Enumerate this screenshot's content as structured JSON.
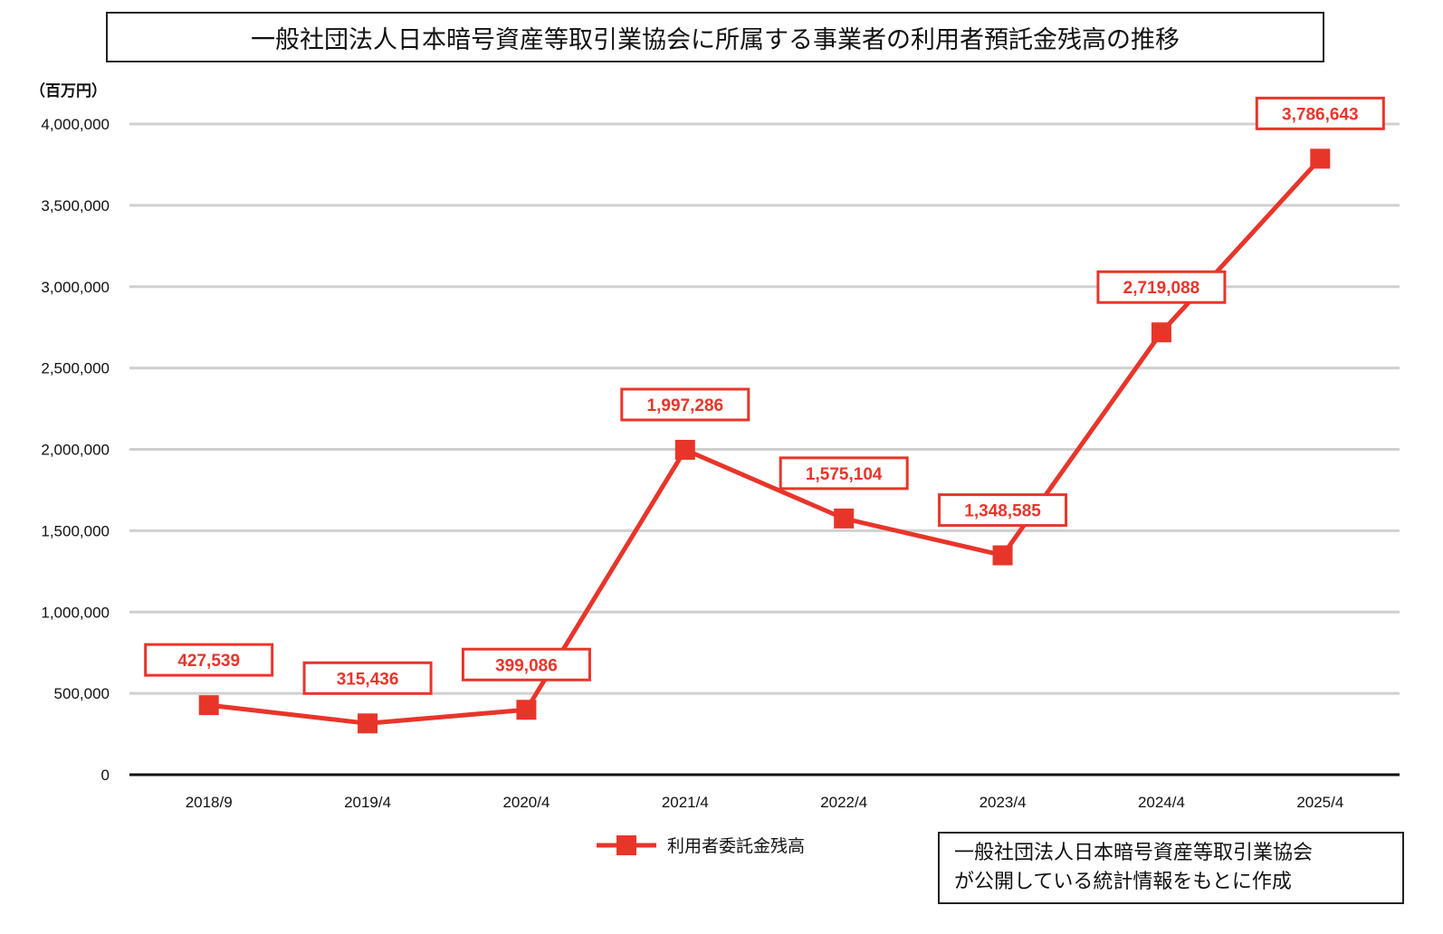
{
  "title": "一般社団法人日本暗号資産等取引業協会に所属する事業者の利用者預託金残高の推移",
  "unit_label": "（百万円）",
  "source_note": {
    "line1": "一般社団法人日本暗号資産等取引業協会",
    "line2": "が公開している統計情報をもとに作成"
  },
  "colors": {
    "series": "#e8352a",
    "grid": "#d0d0d0",
    "axis": "#111111"
  },
  "chart_data": {
    "type": "line",
    "categories": [
      "2018/9",
      "2019/4",
      "2020/4",
      "2021/4",
      "2022/4",
      "2023/4",
      "2024/4",
      "2025/4"
    ],
    "series": [
      {
        "name": "利用者委託金残高",
        "marker": "square",
        "values": [
          427539,
          315436,
          399086,
          1997286,
          1575104,
          1348585,
          2719088,
          3786643
        ],
        "labels": [
          "427,539",
          "315,436",
          "399,086",
          "1,997,286",
          "1,575,104",
          "1,348,585",
          "2,719,088",
          "3,786,643"
        ]
      }
    ],
    "ylim": [
      0,
      4000000
    ],
    "yticks": [
      0,
      500000,
      1000000,
      1500000,
      2000000,
      2500000,
      3000000,
      3500000,
      4000000
    ],
    "ytick_labels": [
      "0",
      "500,000",
      "1,000,000",
      "1,500,000",
      "2,000,000",
      "2,500,000",
      "3,000,000",
      "3,500,000",
      "4,000,000"
    ],
    "grid": true,
    "legend_position": "bottom-center"
  }
}
